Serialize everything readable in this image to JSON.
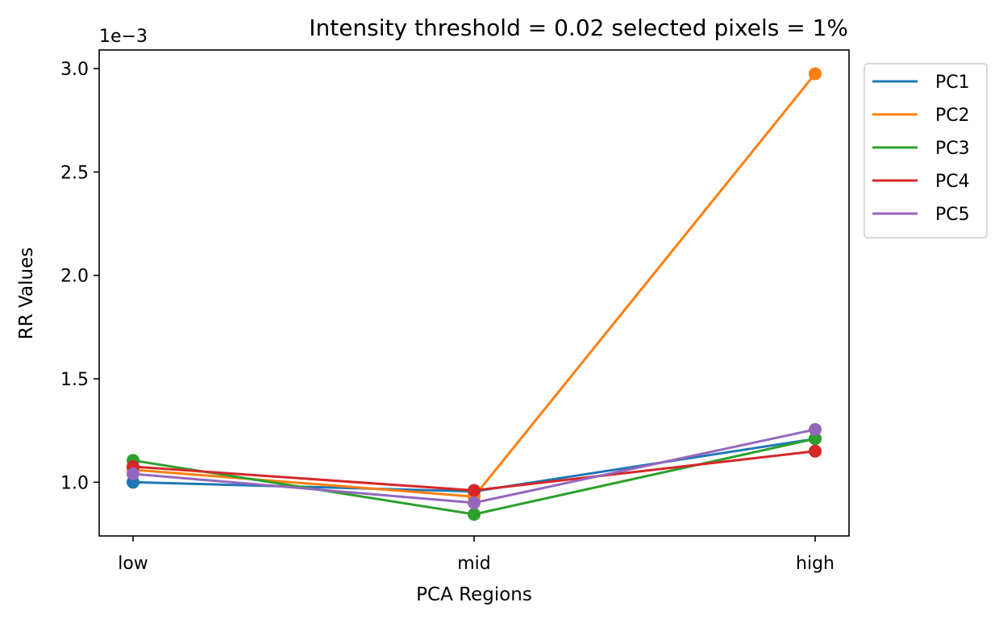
{
  "chart_data": {
    "type": "line",
    "title": "Intensity threshold = 0.02 selected pixels = 1%",
    "xlabel": "PCA Regions",
    "ylabel": "RR Values",
    "y_offset_label": "1e−3",
    "categories": [
      "low",
      "mid",
      "high"
    ],
    "y_ticks": [
      1.0,
      1.5,
      2.0,
      2.5,
      3.0
    ],
    "y_tick_labels": [
      "1.0",
      "1.5",
      "2.0",
      "2.5",
      "3.0"
    ],
    "ylim": [
      0.74,
      3.09
    ],
    "y_scale_factor": 0.001,
    "grid": false,
    "legend_position": "outside-top-right",
    "series": [
      {
        "name": "PC1",
        "color": "#1f77b4",
        "values": [
          1.0,
          0.955,
          1.21
        ]
      },
      {
        "name": "PC2",
        "color": "#ff7f0e",
        "values": [
          1.06,
          0.93,
          2.975
        ]
      },
      {
        "name": "PC3",
        "color": "#2ca02c",
        "values": [
          1.105,
          0.845,
          1.21
        ]
      },
      {
        "name": "PC4",
        "color": "#d62728",
        "values": [
          1.075,
          0.96,
          1.15
        ]
      },
      {
        "name": "PC5",
        "color": "#9467bd",
        "values": [
          1.04,
          0.9,
          1.255
        ]
      }
    ]
  }
}
